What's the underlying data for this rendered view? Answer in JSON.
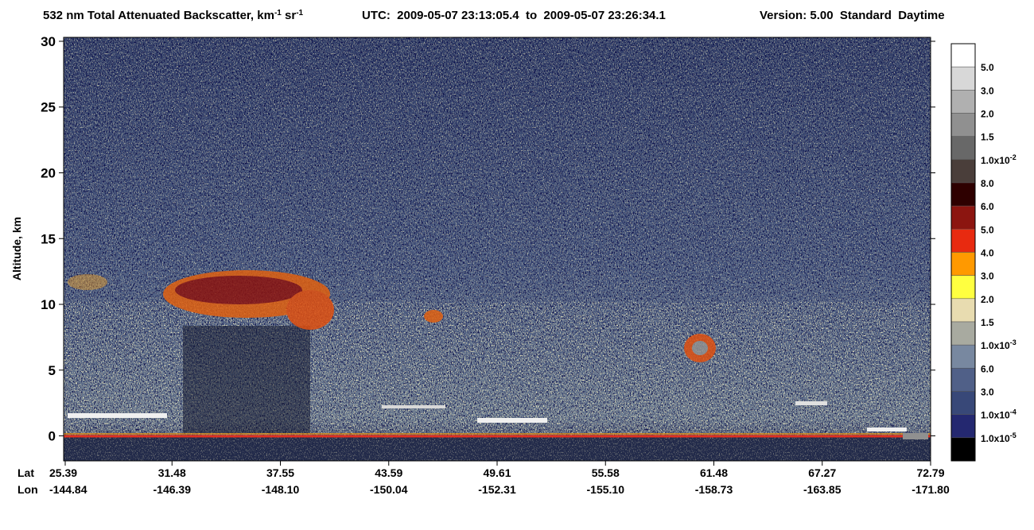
{
  "chart_data": {
    "type": "heatmap",
    "title": [
      "532 nm Total Attenuated Backscatter, km",
      "-1",
      " sr",
      "-1"
    ],
    "time_range": "UTC:  2009-05-07 23:13:05.4  to  2009-05-07 23:26:34.1",
    "version": "Version: 5.00  Standard  Daytime",
    "y_label": "Altitude, km",
    "ylim": [
      -1.9,
      30.3
    ],
    "yticks": [
      0,
      5,
      10,
      15,
      20,
      25,
      30
    ],
    "x_row_labels": [
      "Lat",
      "Lon"
    ],
    "lat": [
      "25.39",
      "31.48",
      "37.55",
      "43.59",
      "49.61",
      "55.58",
      "61.48",
      "67.27",
      "72.79"
    ],
    "lon": [
      "-144.84",
      "-146.39",
      "-148.10",
      "-150.04",
      "-152.31",
      "-155.10",
      "-158.73",
      "-163.85",
      "-171.80"
    ],
    "colorbar": {
      "colors": [
        "#ffffff",
        "#d8d8d8",
        "#b0b0b0",
        "#909090",
        "#686868",
        "#4a3e3a",
        "#2e0000",
        "#8c1510",
        "#e82a10",
        "#ff9900",
        "#ffff40",
        "#e8dcb0",
        "#a8aaa0",
        "#7888a0",
        "#506088",
        "#384878",
        "#242870",
        "#000000"
      ],
      "labels": [
        {
          "text": "5.0"
        },
        {
          "text": "3.0"
        },
        {
          "text": "2.0"
        },
        {
          "text": "1.5"
        },
        {
          "text": "1.0x10",
          "exp": "-2"
        },
        {
          "text": "8.0"
        },
        {
          "text": "6.0"
        },
        {
          "text": "5.0"
        },
        {
          "text": "4.0"
        },
        {
          "text": "3.0"
        },
        {
          "text": "2.0"
        },
        {
          "text": "1.5"
        },
        {
          "text": "1.0x10",
          "exp": "-3"
        },
        {
          "text": "6.0"
        },
        {
          "text": "3.0"
        },
        {
          "text": "1.0x10",
          "exp": "-4"
        },
        {
          "text": "1.0x10",
          "exp": "-5"
        }
      ]
    }
  }
}
